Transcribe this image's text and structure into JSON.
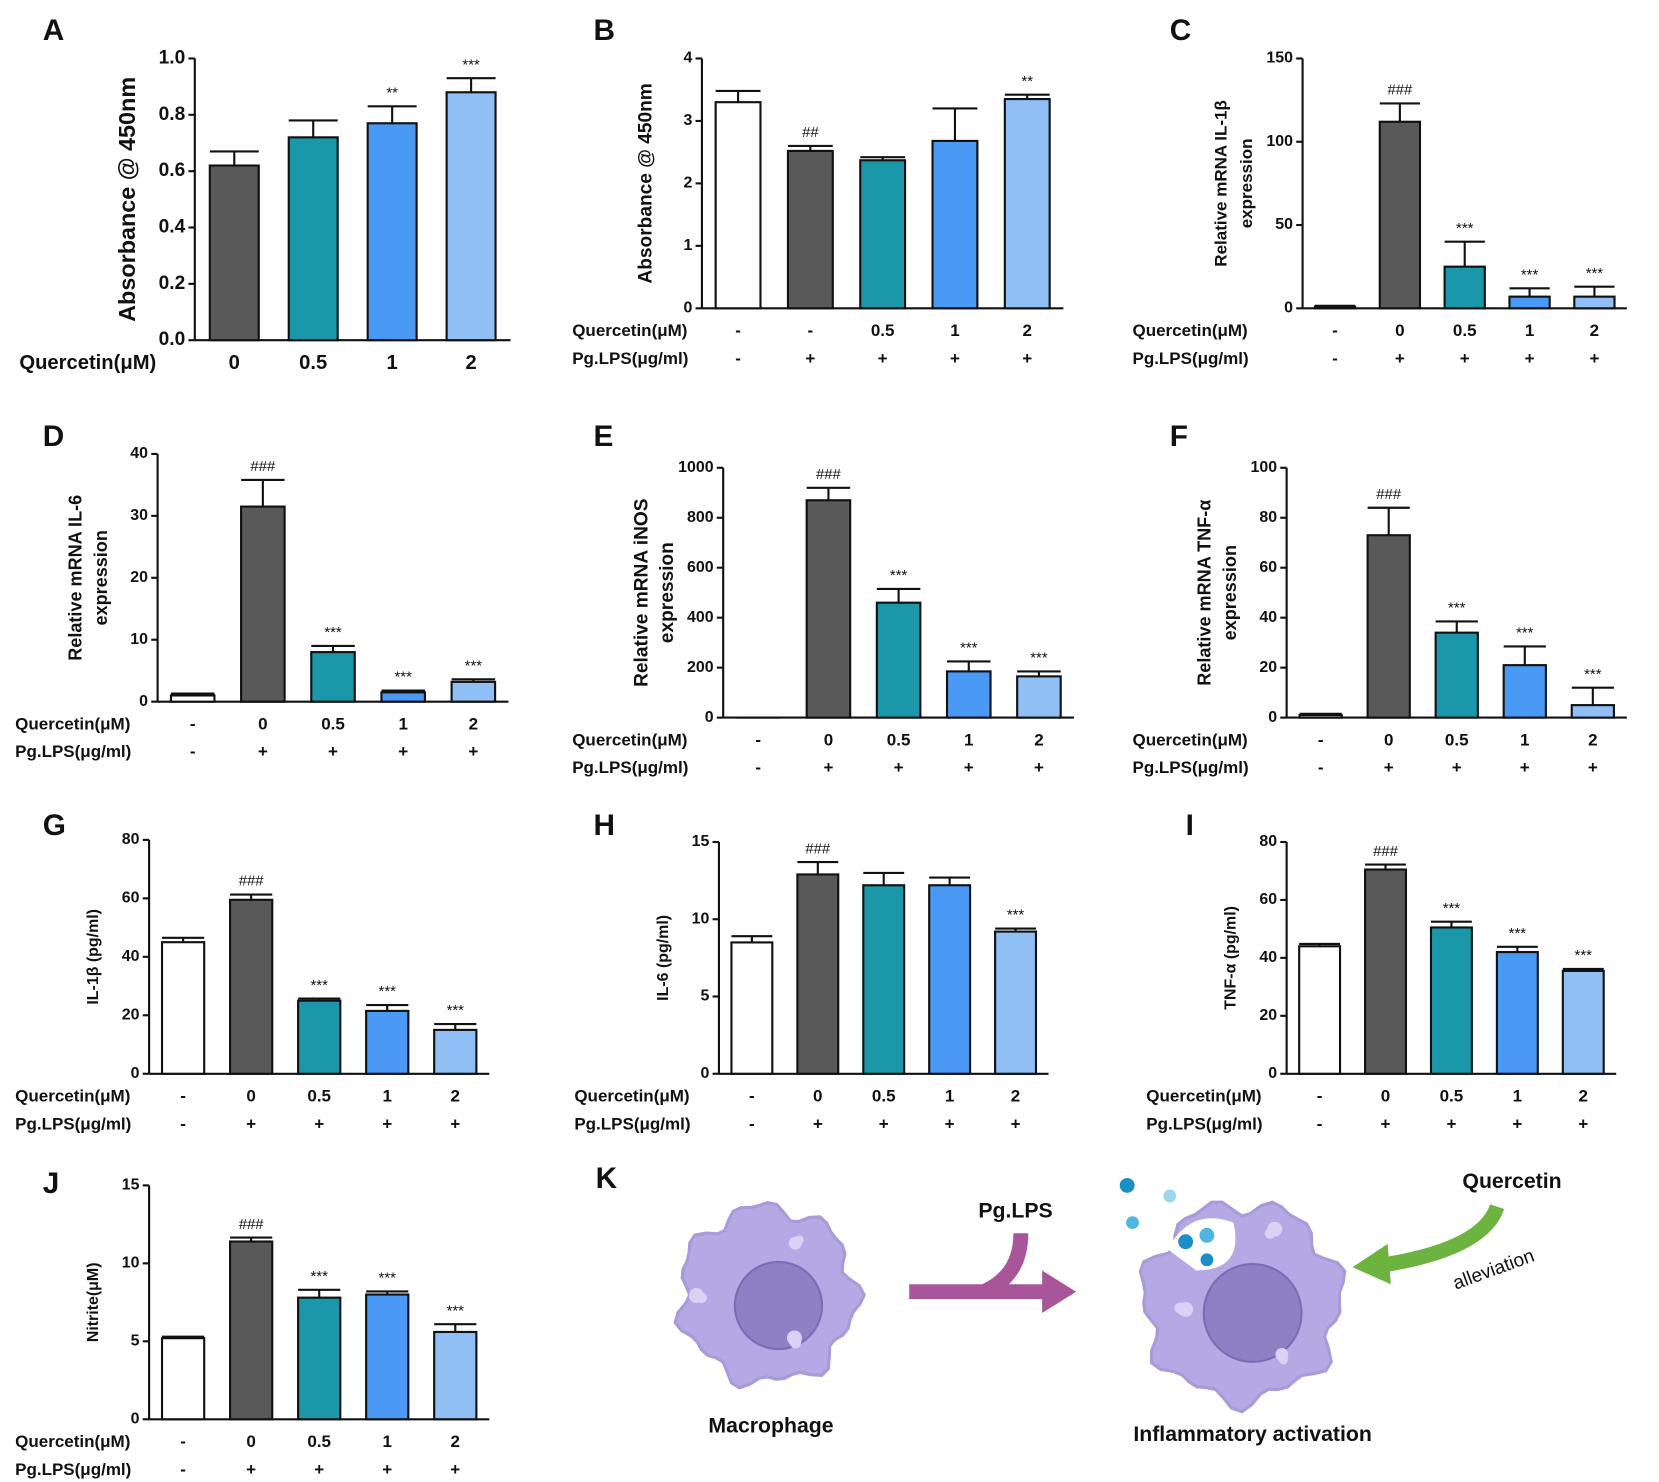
{
  "chart_data": [
    {
      "type": "bar",
      "panel": "A",
      "ylabel": [
        "Absorbance @ 450nm"
      ],
      "row_labels": [
        "Quercetin(μM)"
      ],
      "rows": [
        [
          "0",
          "0.5",
          "1",
          "2"
        ]
      ],
      "values": [
        0.62,
        0.72,
        0.77,
        0.88
      ],
      "errors": [
        0.05,
        0.06,
        0.06,
        0.05
      ],
      "annotations": [
        null,
        null,
        "**",
        "***"
      ],
      "colors": [
        "#595959",
        "#1a97a8",
        "#4a9af5",
        "#8fbff5"
      ],
      "ylim": [
        0,
        1
      ],
      "yticks": [
        {
          "value": 0,
          "label": "0.0"
        },
        0.2,
        0.4,
        0.6,
        0.8,
        {
          "value": 1,
          "label": "1.0"
        }
      ]
    },
    {
      "type": "bar",
      "panel": "B",
      "ylabel": [
        "Absorbance @ 450nm"
      ],
      "row_labels": [
        "Quercetin(μM)",
        "Pg.LPS(μg/ml)"
      ],
      "rows": [
        [
          "-",
          "-",
          "0.5",
          "1",
          "2"
        ],
        [
          "-",
          "+",
          "+",
          "+",
          "+"
        ]
      ],
      "values": [
        3.3,
        2.52,
        2.37,
        2.68,
        3.35
      ],
      "errors": [
        0.18,
        0.08,
        0.05,
        0.52,
        0.07
      ],
      "annotations": [
        null,
        "##",
        null,
        null,
        "**"
      ],
      "colors": [
        "#ffffff",
        "#595959",
        "#1a97a8",
        "#4a9af5",
        "#8fbff5"
      ],
      "ylim": [
        0,
        4
      ],
      "yticks": [
        0,
        1,
        2,
        3,
        4
      ]
    },
    {
      "type": "bar",
      "panel": "C",
      "ylabel": [
        "Relative mRNA IL-1β",
        "expression"
      ],
      "row_labels": [
        "Quercetin(μM)",
        "Pg.LPS(μg/ml)"
      ],
      "rows": [
        [
          "-",
          "0",
          "0.5",
          "1",
          "2"
        ],
        [
          "-",
          "+",
          "+",
          "+",
          "+"
        ]
      ],
      "values": [
        1,
        112,
        25,
        7,
        7
      ],
      "errors": [
        0.5,
        11,
        15,
        5,
        6
      ],
      "annotations": [
        null,
        "###",
        "***",
        "***",
        "***"
      ],
      "colors": [
        "#ffffff",
        "#595959",
        "#1a97a8",
        "#4a9af5",
        "#8fbff5"
      ],
      "ylim": [
        0,
        150
      ],
      "yticks": [
        0,
        50,
        100,
        150
      ]
    },
    {
      "type": "bar",
      "panel": "D",
      "ylabel": [
        "Relative mRNA IL-6",
        "expression"
      ],
      "row_labels": [
        "Quercetin(μM)",
        "Pg.LPS(μg/ml)"
      ],
      "rows": [
        [
          "-",
          "0",
          "0.5",
          "1",
          "2"
        ],
        [
          "-",
          "+",
          "+",
          "+",
          "+"
        ]
      ],
      "values": [
        1,
        31.5,
        8,
        1.5,
        3.2
      ],
      "errors": [
        0.3,
        4.3,
        1,
        0.3,
        0.4
      ],
      "annotations": [
        null,
        "###",
        "***",
        "***",
        "***"
      ],
      "colors": [
        "#ffffff",
        "#595959",
        "#1a97a8",
        "#4a9af5",
        "#8fbff5"
      ],
      "ylim": [
        0,
        40
      ],
      "yticks": [
        0,
        10,
        20,
        30,
        40
      ]
    },
    {
      "type": "bar",
      "panel": "E",
      "ylabel": [
        "Relative mRNA iNOS",
        "expression"
      ],
      "row_labels": [
        "Quercetin(μM)",
        "Pg.LPS(μg/ml)"
      ],
      "rows": [
        [
          "-",
          "0",
          "0.5",
          "1",
          "2"
        ],
        [
          "-",
          "+",
          "+",
          "+",
          "+"
        ]
      ],
      "values": [
        0,
        870,
        460,
        185,
        165
      ],
      "errors": [
        0,
        50,
        55,
        40,
        20
      ],
      "annotations": [
        null,
        "###",
        "***",
        "***",
        "***"
      ],
      "colors": [
        "#ffffff",
        "#595959",
        "#1a97a8",
        "#4a9af5",
        "#8fbff5"
      ],
      "ylim": [
        0,
        1000
      ],
      "yticks": [
        0,
        200,
        400,
        600,
        800,
        1000
      ]
    },
    {
      "type": "bar",
      "panel": "F",
      "ylabel": [
        "Relative mRNA TNF-α",
        "expression"
      ],
      "row_labels": [
        "Quercetin(μM)",
        "Pg.LPS(μg/ml)"
      ],
      "rows": [
        [
          "-",
          "0",
          "0.5",
          "1",
          "2"
        ],
        [
          "-",
          "+",
          "+",
          "+",
          "+"
        ]
      ],
      "values": [
        1,
        73,
        34,
        21,
        5
      ],
      "errors": [
        0.5,
        11,
        4.5,
        7.5,
        7
      ],
      "annotations": [
        null,
        "###",
        "***",
        "***",
        "***"
      ],
      "colors": [
        "#ffffff",
        "#595959",
        "#1a97a8",
        "#4a9af5",
        "#8fbff5"
      ],
      "ylim": [
        0,
        100
      ],
      "yticks": [
        0,
        20,
        40,
        60,
        80,
        100
      ]
    },
    {
      "type": "bar",
      "panel": "G",
      "ylabel": [
        "IL-1β (pg/ml)"
      ],
      "row_labels": [
        "Quercetin(μM)",
        "Pg.LPS(μg/ml)"
      ],
      "rows": [
        [
          "-",
          "0",
          "0.5",
          "1",
          "2"
        ],
        [
          "-",
          "+",
          "+",
          "+",
          "+"
        ]
      ],
      "values": [
        45,
        59.5,
        25,
        21.5,
        15
      ],
      "errors": [
        1.5,
        1.8,
        0.7,
        2,
        2
      ],
      "annotations": [
        null,
        "###",
        "***",
        "***",
        "***"
      ],
      "colors": [
        "#ffffff",
        "#595959",
        "#1a97a8",
        "#4a9af5",
        "#8fbff5"
      ],
      "ylim": [
        0,
        80
      ],
      "yticks": [
        0,
        20,
        40,
        60,
        80
      ]
    },
    {
      "type": "bar",
      "panel": "H",
      "ylabel": [
        "IL-6 (pg/ml)"
      ],
      "row_labels": [
        "Quercetin(μM)",
        "Pg.LPS(μg/ml)"
      ],
      "rows": [
        [
          "-",
          "0",
          "0.5",
          "1",
          "2"
        ],
        [
          "-",
          "+",
          "+",
          "+",
          "+"
        ]
      ],
      "values": [
        8.5,
        12.9,
        12.2,
        12.2,
        9.2
      ],
      "errors": [
        0.4,
        0.8,
        0.8,
        0.5,
        0.2
      ],
      "annotations": [
        null,
        "###",
        null,
        null,
        "***"
      ],
      "colors": [
        "#ffffff",
        "#595959",
        "#1a97a8",
        "#4a9af5",
        "#8fbff5"
      ],
      "ylim": [
        0,
        15
      ],
      "yticks": [
        0,
        5,
        10,
        15
      ]
    },
    {
      "type": "bar",
      "panel": "I",
      "ylabel": [
        "TNF-α (pg/ml)"
      ],
      "row_labels": [
        "Quercetin(μM)",
        "Pg.LPS(μg/ml)"
      ],
      "rows": [
        [
          "-",
          "0",
          "0.5",
          "1",
          "2"
        ],
        [
          "-",
          "+",
          "+",
          "+",
          "+"
        ]
      ],
      "values": [
        44,
        70.5,
        50.5,
        42,
        35.5
      ],
      "errors": [
        0.8,
        1.7,
        2,
        1.8,
        0.7
      ],
      "annotations": [
        null,
        "###",
        "***",
        "***",
        "***"
      ],
      "colors": [
        "#ffffff",
        "#595959",
        "#1a97a8",
        "#4a9af5",
        "#8fbff5"
      ],
      "ylim": [
        0,
        80
      ],
      "yticks": [
        0,
        20,
        40,
        60,
        80
      ]
    },
    {
      "type": "bar",
      "panel": "J",
      "ylabel": [
        "Nitrite(μM)"
      ],
      "row_labels": [
        "Quercetin(μM)",
        "Pg.LPS(μg/ml)"
      ],
      "rows": [
        [
          "-",
          "0",
          "0.5",
          "1",
          "2"
        ],
        [
          "-",
          "+",
          "+",
          "+",
          "+"
        ]
      ],
      "values": [
        5.2,
        11.4,
        7.8,
        8,
        5.6
      ],
      "errors": [
        0.1,
        0.25,
        0.5,
        0.2,
        0.5
      ],
      "annotations": [
        null,
        "###",
        "***",
        "***",
        "***"
      ],
      "colors": [
        "#ffffff",
        "#595959",
        "#1a97a8",
        "#4a9af5",
        "#8fbff5"
      ],
      "ylim": [
        0,
        15
      ],
      "yticks": [
        0,
        5,
        10,
        15
      ]
    }
  ],
  "diagram": {
    "panel": "K",
    "stimulus": "Pg.LPS",
    "treatment": "Quercetin",
    "effect": "alleviation",
    "left_cell": "Macrophage",
    "right_cell": "Inflammatory activation"
  }
}
